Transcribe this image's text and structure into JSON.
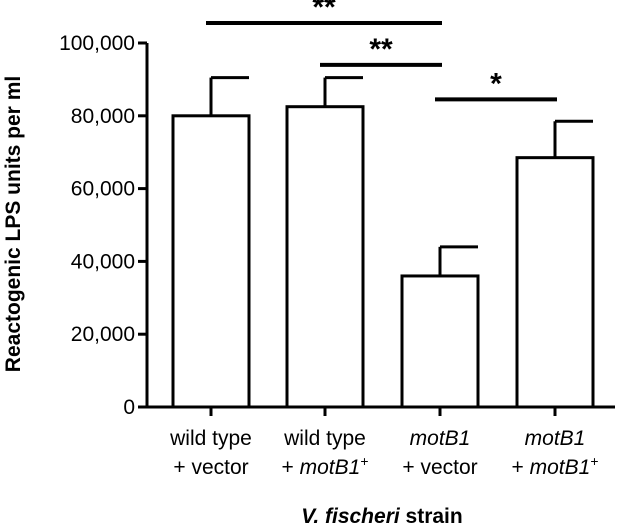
{
  "chart_data": {
    "type": "bar",
    "title": "",
    "ylabel": "Reactogenic LPS units per ml",
    "xlabel_italic": "V. fischeri",
    "xlabel_rest": " strain",
    "ylim": [
      0,
      100000
    ],
    "yticks": [
      0,
      20000,
      40000,
      60000,
      80000,
      100000
    ],
    "ytick_labels": [
      "0",
      "20,000",
      "40,000",
      "60,000",
      "80,000",
      "100,000"
    ],
    "categories": [
      {
        "line1": [
          {
            "t": "wild type",
            "i": false
          }
        ],
        "line2": [
          {
            "t": "+ vector",
            "i": false
          }
        ]
      },
      {
        "line1": [
          {
            "t": "wild type",
            "i": false
          }
        ],
        "line2": [
          {
            "t": "+ ",
            "i": false
          },
          {
            "t": "motB1",
            "i": true
          },
          {
            "t": "+",
            "i": false,
            "sup": true
          }
        ]
      },
      {
        "line1": [
          {
            "t": "motB1",
            "i": true
          }
        ],
        "line2": [
          {
            "t": "+ vector",
            "i": false
          }
        ]
      },
      {
        "line1": [
          {
            "t": "motB1",
            "i": true
          }
        ],
        "line2": [
          {
            "t": "+ ",
            "i": false
          },
          {
            "t": "motB1",
            "i": true
          },
          {
            "t": "+",
            "i": false,
            "sup": true
          }
        ]
      }
    ],
    "values": [
      80000,
      82500,
      36000,
      68500
    ],
    "errors": [
      10500,
      8000,
      8000,
      10000
    ],
    "significance": [
      {
        "from": 0,
        "to": 2,
        "label": "**",
        "y": 105500
      },
      {
        "from": 1,
        "to": 2,
        "label": "**",
        "y": 94000
      },
      {
        "from": 2,
        "to": 3,
        "label": "*",
        "y": 84500
      }
    ],
    "colors": {
      "bar_fill": "#ffffff",
      "bar_stroke": "#000000",
      "axis": "#000000"
    }
  }
}
